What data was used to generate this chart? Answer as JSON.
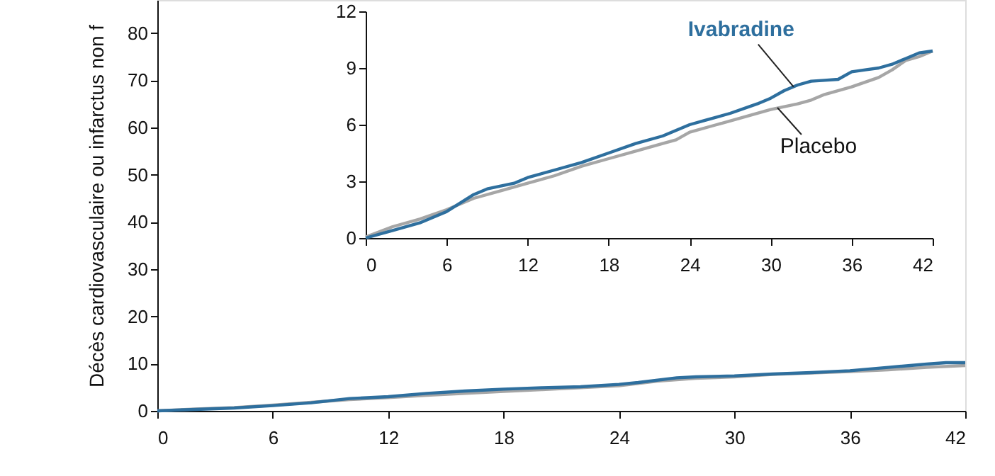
{
  "chart_data": [
    {
      "type": "line",
      "ylabel": "Décès cardiovasculaire ou infarctus non f",
      "xlim": [
        0,
        42
      ],
      "xticks": [
        0,
        6,
        12,
        18,
        24,
        30,
        36,
        42
      ],
      "ylim": [
        0,
        87
      ],
      "yticks": [
        0,
        10,
        20,
        30,
        40,
        50,
        60,
        70,
        80
      ],
      "marker": "none",
      "line_style": "solid",
      "series": [
        {
          "color": "#a6a6a6",
          "x": [
            0,
            2,
            4,
            6,
            8,
            10,
            12,
            14,
            16,
            18,
            20,
            22,
            24,
            26,
            28,
            30,
            32,
            34,
            36,
            38,
            40,
            42
          ],
          "values": [
            0,
            0.4,
            0.7,
            1.2,
            1.8,
            2.4,
            2.8,
            3.3,
            3.7,
            4.1,
            4.5,
            4.9,
            5.3,
            6.3,
            6.9,
            7.2,
            7.7,
            8.0,
            8.3,
            8.7,
            9.2,
            9.6
          ]
        },
        {
          "color": "#2e6f9e",
          "x": [
            0,
            2,
            4,
            6,
            8,
            10,
            12,
            14,
            16,
            18,
            20,
            22,
            24,
            25,
            27,
            28,
            30,
            32,
            34,
            36,
            38,
            40,
            41,
            42
          ],
          "values": [
            0,
            0.3,
            0.6,
            1.1,
            1.7,
            2.6,
            3.0,
            3.7,
            4.2,
            4.6,
            4.9,
            5.1,
            5.6,
            6.0,
            7.0,
            7.2,
            7.4,
            7.8,
            8.1,
            8.5,
            9.2,
            9.9,
            10.2,
            10.2
          ]
        }
      ]
    },
    {
      "type": "line",
      "xlim": [
        0,
        42
      ],
      "xticks": [
        0,
        6,
        12,
        18,
        24,
        30,
        36,
        42
      ],
      "ylim": [
        0,
        12
      ],
      "yticks": [
        0,
        3,
        6,
        9,
        12
      ],
      "marker": "none",
      "line_style": "solid",
      "annotations": [
        {
          "text": "Placebo",
          "x": 30.5,
          "y": 6.9
        },
        {
          "text": "Ivabradine",
          "x": 31.7,
          "y": 8.0
        }
      ],
      "series": [
        {
          "color": "#a6a6a6",
          "x": [
            0,
            2,
            4,
            6,
            8,
            10,
            12,
            14,
            16,
            18,
            20,
            22,
            23,
            24,
            26,
            28,
            30,
            32,
            33,
            34,
            36,
            38,
            39,
            40,
            41,
            42
          ],
          "values": [
            0.05,
            0.6,
            1.0,
            1.5,
            2.1,
            2.5,
            2.9,
            3.3,
            3.8,
            4.2,
            4.6,
            5.0,
            5.2,
            5.6,
            6.0,
            6.4,
            6.8,
            7.1,
            7.3,
            7.6,
            8.0,
            8.5,
            8.9,
            9.4,
            9.6,
            9.9
          ]
        },
        {
          "color": "#2e6f9e",
          "x": [
            0,
            2,
            4,
            6,
            8,
            9,
            11,
            12,
            14,
            16,
            18,
            20,
            22,
            24,
            25,
            27,
            29,
            30,
            31,
            32,
            33,
            34,
            35,
            36,
            37,
            38,
            39,
            40,
            41,
            42
          ],
          "values": [
            0,
            0.4,
            0.8,
            1.4,
            2.3,
            2.6,
            2.9,
            3.2,
            3.6,
            4.0,
            4.5,
            5.0,
            5.4,
            6.0,
            6.2,
            6.6,
            7.1,
            7.4,
            7.8,
            8.1,
            8.3,
            8.35,
            8.4,
            8.8,
            8.9,
            9.0,
            9.2,
            9.5,
            9.8,
            9.9
          ]
        }
      ]
    }
  ]
}
